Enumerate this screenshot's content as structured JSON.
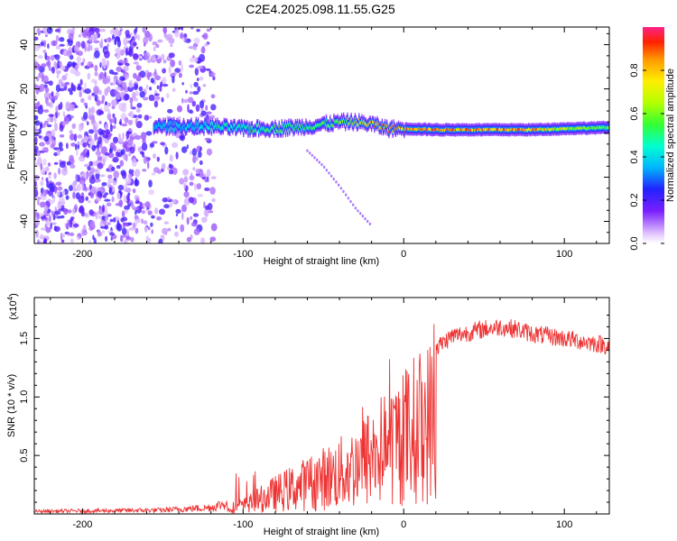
{
  "title": "C2E4.2025.098.11.55.G25",
  "chart_data": [
    {
      "type": "heatmap",
      "title": "C2E4.2025.098.11.55.G25",
      "xlabel": "Height of straight line (km)",
      "ylabel": "Frequency (Hz)",
      "xlim": [
        -230,
        128
      ],
      "ylim": [
        -50,
        48
      ],
      "xticks": [
        -200,
        -100,
        0,
        100
      ],
      "yticks": [
        -40,
        -20,
        0,
        20,
        40
      ],
      "xtick_labels": [
        "-200",
        "-100",
        "0",
        "100"
      ],
      "ytick_labels": [
        "-40",
        "-20",
        "0",
        "20",
        "40"
      ],
      "colorbar": {
        "label": "Normalized spectral amplitude",
        "range": [
          0,
          1
        ],
        "ticks": [
          0.0,
          0.2,
          0.4,
          0.6,
          0.8
        ],
        "tick_labels": [
          "0.0",
          "0.2",
          "0.4",
          "0.6",
          "0.8"
        ]
      },
      "ridge": {
        "x": [
          -155,
          -140,
          -120,
          -100,
          -80,
          -60,
          -40,
          -30,
          -20,
          -10,
          0,
          20,
          40,
          60,
          80,
          100,
          128
        ],
        "freq": [
          3,
          3,
          3,
          2,
          2,
          3,
          5,
          5,
          4,
          2,
          2,
          1.5,
          1.5,
          1.5,
          1.5,
          2,
          2.5
        ],
        "amplitude": [
          0.4,
          0.4,
          0.5,
          0.55,
          0.6,
          0.55,
          0.65,
          0.75,
          0.85,
          0.9,
          0.9,
          0.95,
          0.95,
          0.95,
          0.9,
          0.7,
          0.6
        ]
      },
      "branch": {
        "x": [
          -60,
          -50,
          -40,
          -30,
          -20
        ],
        "freq": [
          -8,
          -15,
          -24,
          -34,
          -42
        ]
      }
    },
    {
      "type": "line",
      "xlabel": "Height of straight line (km)",
      "ylabel": "SNR (10 * v/v)",
      "y_multiplier": "(x10",
      "y_multiplier_exp": "4",
      "y_multiplier_close": ")",
      "xlim": [
        -230,
        128
      ],
      "ylim": [
        0,
        1.85
      ],
      "xticks": [
        -200,
        -100,
        0,
        100
      ],
      "yticks": [
        0.5,
        1.0,
        1.5
      ],
      "xtick_labels": [
        "-200",
        "-100",
        "0",
        "100"
      ],
      "ytick_labels": [
        "0.5",
        "1.0",
        "1.5"
      ],
      "color": "#ee3333",
      "envelope": {
        "x": [
          -230,
          -150,
          -120,
          -100,
          -80,
          -60,
          -40,
          -30,
          -20,
          -10,
          0,
          10,
          20,
          30,
          40,
          50,
          60,
          70,
          80,
          100,
          128
        ],
        "y": [
          0.02,
          0.03,
          0.05,
          0.12,
          0.3,
          0.45,
          0.6,
          0.7,
          0.85,
          1.0,
          1.15,
          1.3,
          1.42,
          1.52,
          1.55,
          1.58,
          1.6,
          1.58,
          1.54,
          1.5,
          1.44
        ]
      }
    }
  ]
}
